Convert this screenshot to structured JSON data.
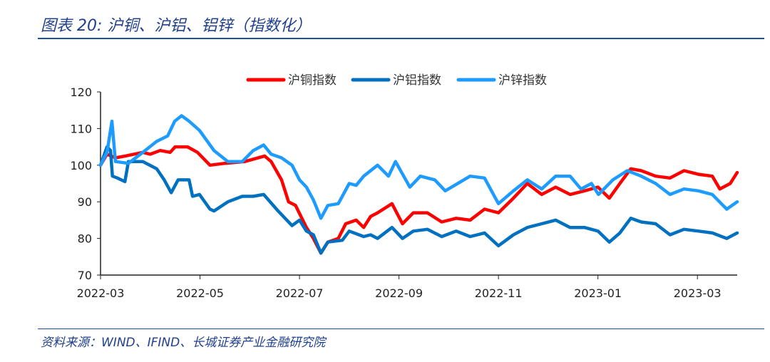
{
  "title": "图表 20:  沪铜、沪铝、铝锌（指数化）",
  "source": "资料来源：WIND、IFIND、长城证券产业金融研究院",
  "chart_data": {
    "type": "line",
    "title": "图表 20:  沪铜、沪铝、铝锌（指数化）",
    "xlabel": "",
    "ylabel": "",
    "x_unit": "months since 2022-03",
    "xlim": [
      0,
      12.8
    ],
    "ylim": [
      70,
      120
    ],
    "yticks": [
      70,
      80,
      90,
      100,
      110,
      120
    ],
    "xticks": [
      {
        "x": 0,
        "label": "2022-03"
      },
      {
        "x": 2,
        "label": "2022-05"
      },
      {
        "x": 4,
        "label": "2022-07"
      },
      {
        "x": 6,
        "label": "2022-09"
      },
      {
        "x": 8,
        "label": "2022-11"
      },
      {
        "x": 10,
        "label": "2023-01"
      },
      {
        "x": 12,
        "label": "2023-03"
      }
    ],
    "legend_position": "top-center",
    "grid": false,
    "series": [
      {
        "name": "沪铜指数",
        "color": "#ff0000",
        "points": [
          [
            0,
            100
          ],
          [
            0.13,
            103
          ],
          [
            0.3,
            102
          ],
          [
            0.5,
            102.5
          ],
          [
            0.85,
            103.5
          ],
          [
            1.0,
            103
          ],
          [
            1.2,
            104
          ],
          [
            1.4,
            103.5
          ],
          [
            1.5,
            105
          ],
          [
            1.75,
            105
          ],
          [
            1.95,
            103.5
          ],
          [
            2.2,
            100
          ],
          [
            2.5,
            100.5
          ],
          [
            2.9,
            101
          ],
          [
            3.3,
            102.5
          ],
          [
            3.43,
            101
          ],
          [
            3.64,
            96
          ],
          [
            3.78,
            90
          ],
          [
            3.92,
            89
          ],
          [
            4.14,
            83
          ],
          [
            4.28,
            80
          ],
          [
            4.43,
            76
          ],
          [
            4.57,
            79
          ],
          [
            4.78,
            80
          ],
          [
            4.93,
            84
          ],
          [
            5.14,
            85
          ],
          [
            5.29,
            83
          ],
          [
            5.43,
            86
          ],
          [
            5.57,
            87
          ],
          [
            5.86,
            89.5
          ],
          [
            6.07,
            84
          ],
          [
            6.29,
            87
          ],
          [
            6.57,
            87
          ],
          [
            6.86,
            84.5
          ],
          [
            7.15,
            85.5
          ],
          [
            7.43,
            85
          ],
          [
            7.72,
            88
          ],
          [
            8.0,
            87
          ],
          [
            8.3,
            91
          ],
          [
            8.58,
            95
          ],
          [
            8.87,
            92
          ],
          [
            9.15,
            94
          ],
          [
            9.44,
            92
          ],
          [
            9.73,
            93
          ],
          [
            10.0,
            94
          ],
          [
            10.23,
            91
          ],
          [
            10.44,
            95
          ],
          [
            10.66,
            99
          ],
          [
            10.87,
            98.5
          ],
          [
            11.16,
            97
          ],
          [
            11.45,
            96.5
          ],
          [
            11.73,
            98.5
          ],
          [
            12.02,
            97.5
          ],
          [
            12.3,
            97
          ],
          [
            12.45,
            93.5
          ],
          [
            12.66,
            95
          ],
          [
            12.8,
            98
          ]
        ]
      },
      {
        "name": "沪铝指数",
        "color": "#0070c0",
        "points": [
          [
            0,
            100
          ],
          [
            0.13,
            105
          ],
          [
            0.2,
            104
          ],
          [
            0.24,
            97
          ],
          [
            0.34,
            96.5
          ],
          [
            0.49,
            95.5
          ],
          [
            0.56,
            101
          ],
          [
            0.85,
            101
          ],
          [
            1.13,
            99
          ],
          [
            1.28,
            96
          ],
          [
            1.42,
            92.5
          ],
          [
            1.56,
            96
          ],
          [
            1.78,
            96
          ],
          [
            1.85,
            91.5
          ],
          [
            1.99,
            92
          ],
          [
            2.2,
            88
          ],
          [
            2.28,
            87.5
          ],
          [
            2.56,
            90
          ],
          [
            2.85,
            91.5
          ],
          [
            3.07,
            91.5
          ],
          [
            3.28,
            92
          ],
          [
            3.57,
            87.5
          ],
          [
            3.85,
            83.5
          ],
          [
            4.0,
            85
          ],
          [
            4.14,
            82
          ],
          [
            4.28,
            81
          ],
          [
            4.43,
            76
          ],
          [
            4.57,
            79
          ],
          [
            4.86,
            79.5
          ],
          [
            5.0,
            82
          ],
          [
            5.29,
            80.5
          ],
          [
            5.43,
            81
          ],
          [
            5.57,
            80
          ],
          [
            5.86,
            83
          ],
          [
            6.07,
            80
          ],
          [
            6.29,
            82
          ],
          [
            6.57,
            82.5
          ],
          [
            6.86,
            80.5
          ],
          [
            7.15,
            82
          ],
          [
            7.43,
            80.5
          ],
          [
            7.72,
            81.5
          ],
          [
            8.0,
            78
          ],
          [
            8.3,
            81
          ],
          [
            8.58,
            83
          ],
          [
            8.87,
            84
          ],
          [
            9.15,
            85
          ],
          [
            9.44,
            83
          ],
          [
            9.73,
            83
          ],
          [
            10.0,
            82
          ],
          [
            10.23,
            79
          ],
          [
            10.44,
            81.5
          ],
          [
            10.66,
            85.5
          ],
          [
            10.87,
            84.5
          ],
          [
            11.16,
            84
          ],
          [
            11.45,
            81
          ],
          [
            11.73,
            82.5
          ],
          [
            12.02,
            82
          ],
          [
            12.3,
            81.5
          ],
          [
            12.59,
            80
          ],
          [
            12.8,
            81.5
          ]
        ]
      },
      {
        "name": "沪锌指数",
        "color": "#1e9bff",
        "points": [
          [
            0,
            100
          ],
          [
            0.13,
            103.5
          ],
          [
            0.23,
            112
          ],
          [
            0.3,
            101
          ],
          [
            0.56,
            100.5
          ],
          [
            0.85,
            103.5
          ],
          [
            1.13,
            106.5
          ],
          [
            1.35,
            108
          ],
          [
            1.49,
            112
          ],
          [
            1.63,
            113.5
          ],
          [
            1.78,
            112
          ],
          [
            1.99,
            109.5
          ],
          [
            2.28,
            104
          ],
          [
            2.56,
            101
          ],
          [
            2.85,
            101
          ],
          [
            3.07,
            104
          ],
          [
            3.28,
            105.5
          ],
          [
            3.43,
            103
          ],
          [
            3.64,
            102
          ],
          [
            3.85,
            100
          ],
          [
            4.0,
            96
          ],
          [
            4.14,
            94
          ],
          [
            4.28,
            90.5
          ],
          [
            4.43,
            85.5
          ],
          [
            4.57,
            89
          ],
          [
            4.78,
            89.5
          ],
          [
            5.0,
            95
          ],
          [
            5.14,
            94.5
          ],
          [
            5.29,
            97
          ],
          [
            5.57,
            100
          ],
          [
            5.79,
            97
          ],
          [
            5.93,
            101
          ],
          [
            6.22,
            94
          ],
          [
            6.43,
            97
          ],
          [
            6.72,
            96
          ],
          [
            6.93,
            93
          ],
          [
            7.43,
            97
          ],
          [
            7.72,
            96.5
          ],
          [
            8.0,
            89.5
          ],
          [
            8.3,
            93
          ],
          [
            8.58,
            96
          ],
          [
            8.87,
            93.5
          ],
          [
            9.15,
            97
          ],
          [
            9.44,
            97
          ],
          [
            9.66,
            93.5
          ],
          [
            9.87,
            95
          ],
          [
            10.01,
            92
          ],
          [
            10.3,
            96
          ],
          [
            10.59,
            98.5
          ],
          [
            10.87,
            97
          ],
          [
            11.16,
            95
          ],
          [
            11.45,
            92
          ],
          [
            11.73,
            93.5
          ],
          [
            12.02,
            93
          ],
          [
            12.3,
            92
          ],
          [
            12.59,
            88
          ],
          [
            12.8,
            90
          ]
        ]
      }
    ]
  }
}
